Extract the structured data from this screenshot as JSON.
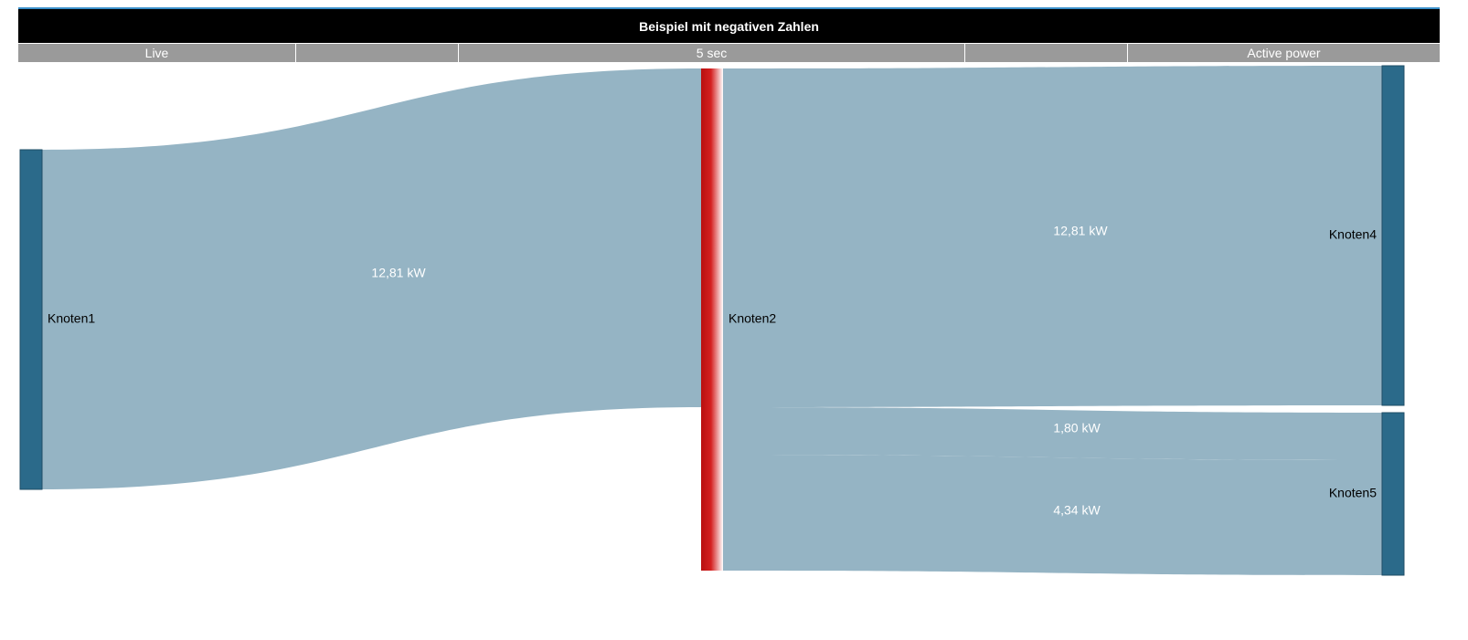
{
  "title": "Beispiel mit negativen Zahlen",
  "toolbar": {
    "items": [
      "Live",
      "",
      "5 sec",
      "",
      "Active power"
    ]
  },
  "colors": {
    "link": "#95b4c4",
    "node": "#2b6a8a",
    "node_stroke": "#1f4d66",
    "negative_node": "#c81414",
    "title_bg": "#000000",
    "toolbar_bg": "#9a9a9a"
  },
  "chart_data": {
    "type": "sankey",
    "nodes": [
      {
        "id": "Knoten1",
        "label": "Knoten1"
      },
      {
        "id": "Knoten2",
        "label": "Knoten2",
        "negative": true
      },
      {
        "id": "Knoten4",
        "label": "Knoten4"
      },
      {
        "id": "Knoten5",
        "label": "Knoten5"
      }
    ],
    "links": [
      {
        "source": "Knoten1",
        "target": "Knoten2",
        "value": 12.81,
        "label": "12,81 kW"
      },
      {
        "source": "Knoten2",
        "target": "Knoten4",
        "value": 12.81,
        "label": "12,81 kW"
      },
      {
        "source": "Knoten2",
        "target": "Knoten5",
        "value": 1.8,
        "label": "1,80 kW"
      },
      {
        "source": "Knoten2",
        "target": "Knoten5",
        "value": 4.34,
        "label": "4,34 kW"
      }
    ]
  }
}
